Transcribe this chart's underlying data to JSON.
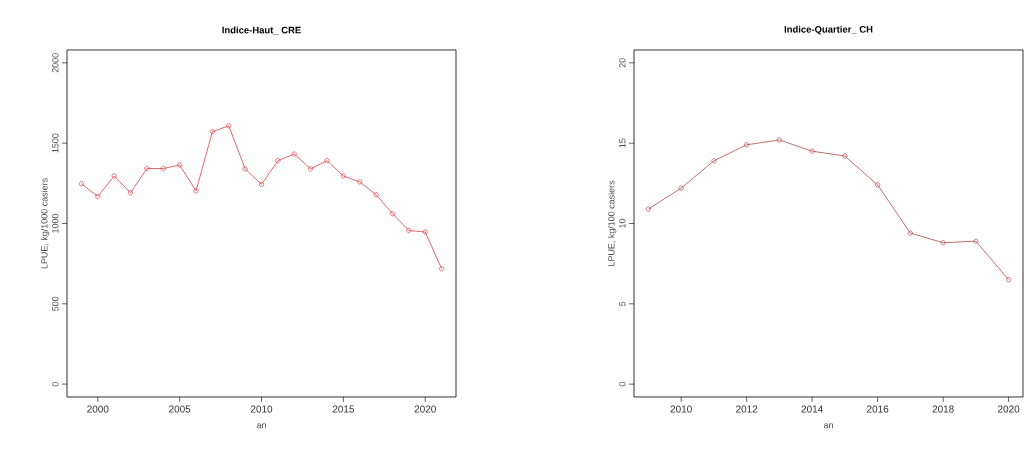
{
  "chart_data": [
    {
      "type": "line",
      "title": "Indice-Haut_ CRE",
      "xlabel": "an",
      "ylabel": "LPUE, kg/1000 casiers",
      "marker": "circle",
      "x": [
        1999,
        2000,
        2001,
        2002,
        2003,
        2004,
        2005,
        2006,
        2007,
        2008,
        2009,
        2010,
        2011,
        2012,
        2013,
        2014,
        2015,
        2016,
        2017,
        2018,
        2019,
        2020,
        2021
      ],
      "series": [
        {
          "color": "#d9434b",
          "values": [
            1247,
            1168,
            1296,
            1191,
            1342,
            1342,
            1364,
            1203,
            1571,
            1608,
            1340,
            1243,
            1391,
            1432,
            1340,
            1391,
            1296,
            1259,
            1179,
            1061,
            956,
            947,
            718
          ]
        }
      ],
      "xlim": [
        1998.12,
        2021.88
      ],
      "ylim": [
        -80,
        2080
      ],
      "xticks": [
        2000,
        2005,
        2010,
        2015,
        2020
      ],
      "yticks": [
        0,
        500,
        1000,
        1500,
        2000
      ]
    },
    {
      "type": "line",
      "title": "Indice-Quartier_ CH",
      "xlabel": "an",
      "ylabel": "LPUE, kg/100 casiers",
      "marker": "circle",
      "x": [
        2009,
        2010,
        2011,
        2012,
        2013,
        2014,
        2015,
        2016,
        2017,
        2018,
        2019,
        2020
      ],
      "series": [
        {
          "color": "#b5474b",
          "values": [
            10.9,
            12.2,
            13.9,
            14.9,
            15.2,
            14.5,
            14.2,
            12.4,
            9.4,
            8.8,
            8.9,
            6.5
          ]
        }
      ],
      "xlim": [
        2008.56,
        2020.44
      ],
      "ylim": [
        -0.8,
        20.8
      ],
      "xticks": [
        2010,
        2012,
        2014,
        2016,
        2018,
        2020
      ],
      "yticks": [
        0,
        5,
        10,
        15,
        20
      ]
    }
  ]
}
